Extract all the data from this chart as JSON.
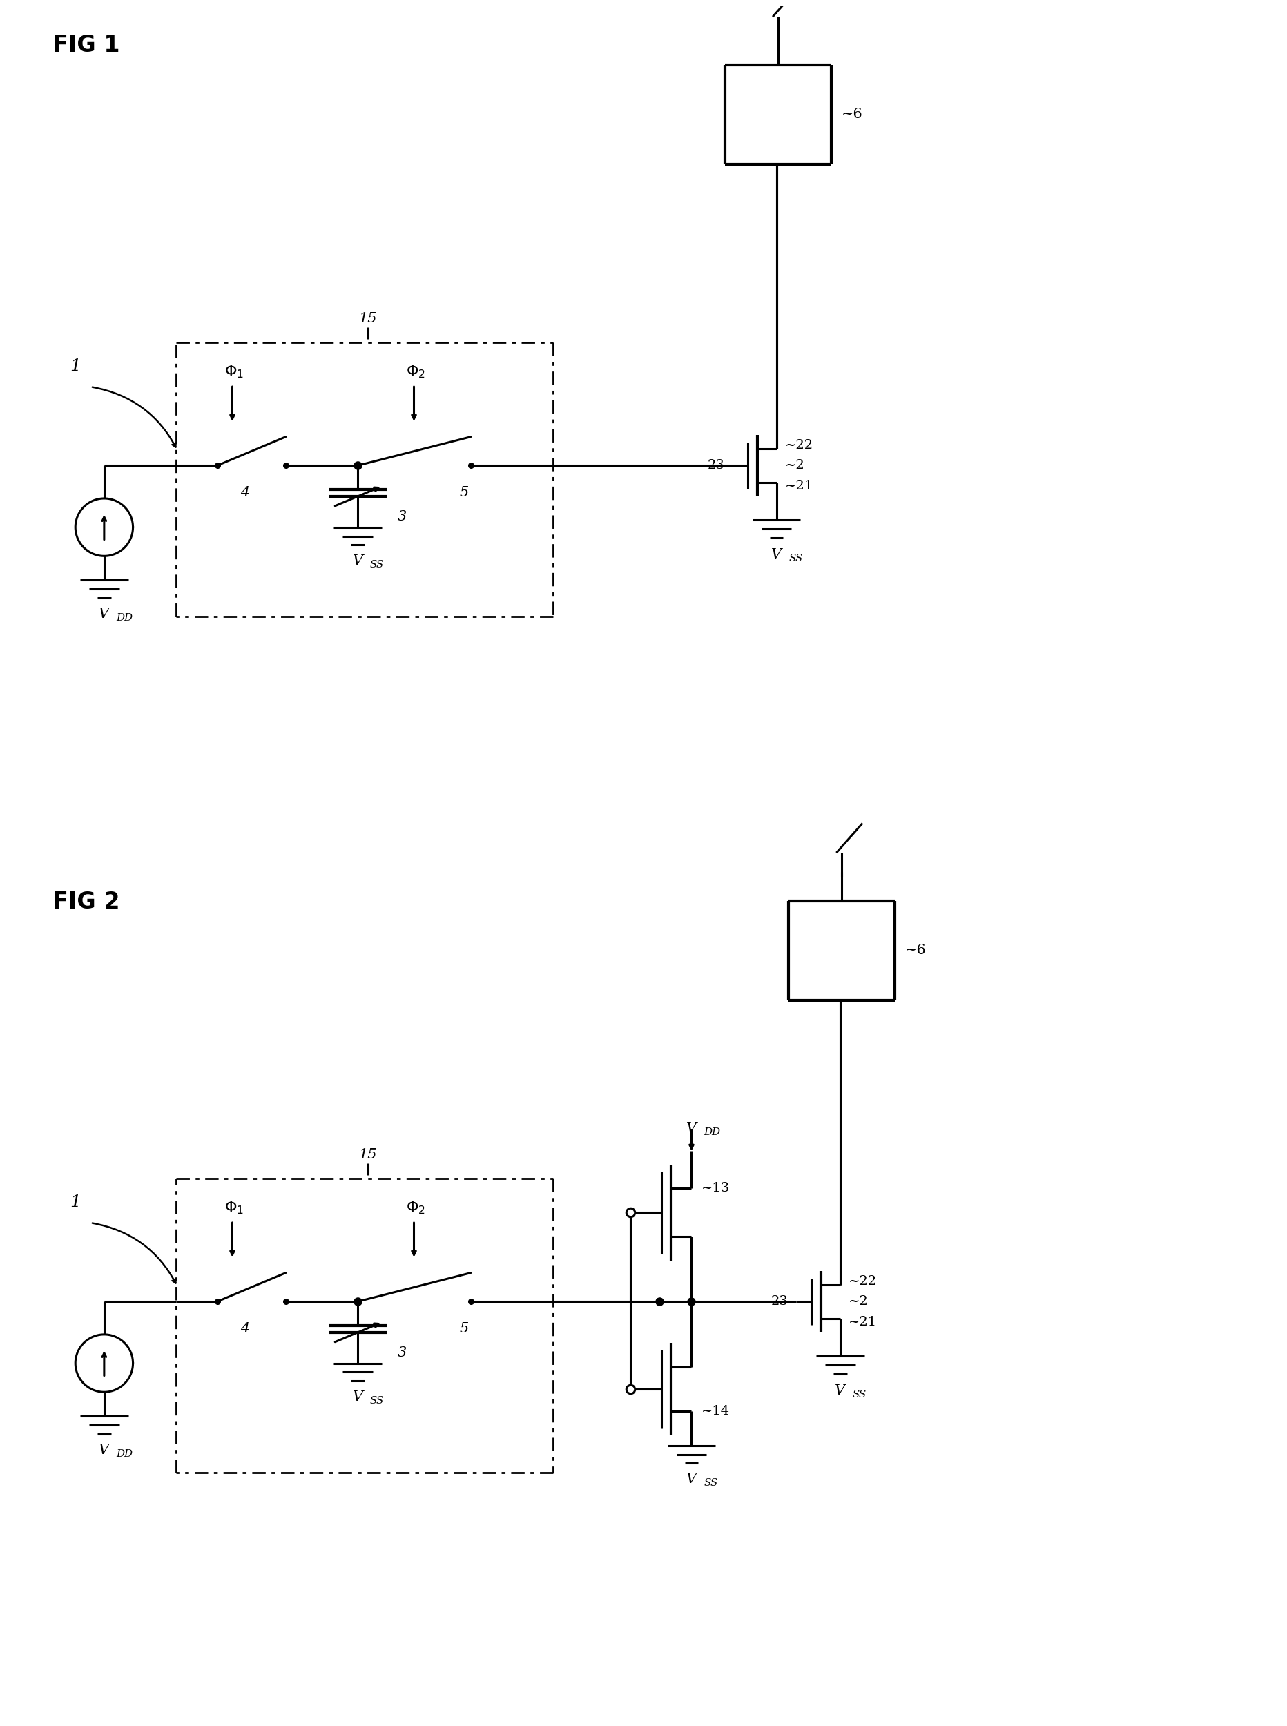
{
  "fig_width": 18.65,
  "fig_height": 25.0,
  "bg_color": "#ffffff",
  "lw": 2.2,
  "tlw": 3.0,
  "fig1_label": "FIG 1",
  "fig2_label": "FIG 2",
  "label_phi1": "Φ1",
  "label_phi2": "Φ2",
  "label_VDD": "V",
  "label_VSS": "V",
  "label_DD": "DD",
  "label_SS": "SS"
}
